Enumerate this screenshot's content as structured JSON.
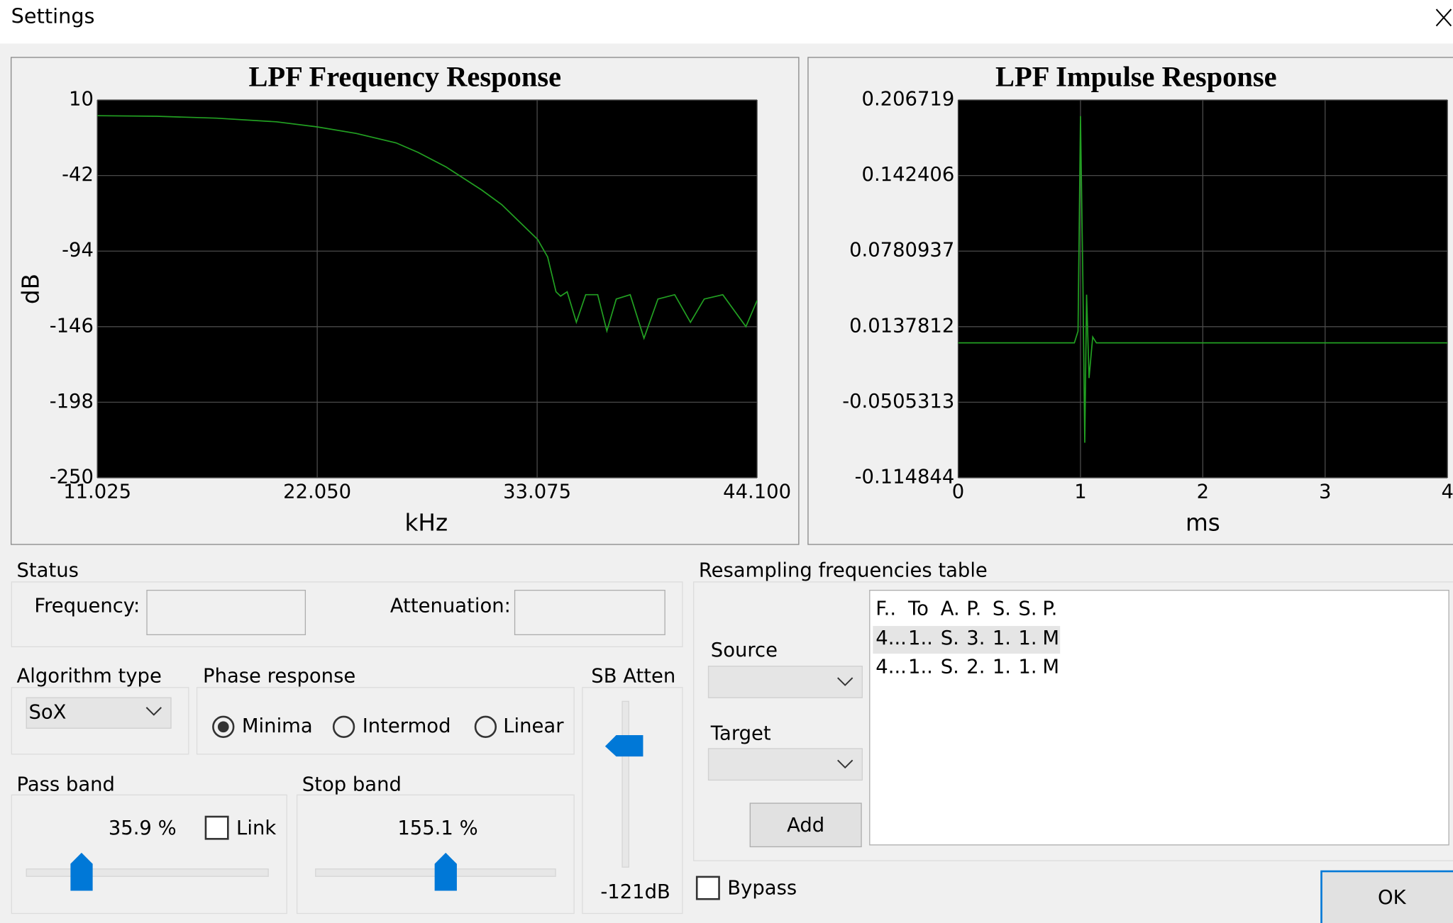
{
  "window": {
    "title": "Settings"
  },
  "chart_data": [
    {
      "type": "line",
      "title": "LPF Frequency Response",
      "x_label": "kHz",
      "y_label": "dB",
      "color": "#22a022",
      "grid": true,
      "xlim": [
        11.025,
        44.1
      ],
      "xticks": [
        11.025,
        {
          "value": 22.05,
          "label": "22.050"
        },
        33.075,
        {
          "value": 44.1,
          "label": "44.100"
        }
      ],
      "ylim": [
        -250,
        10
      ],
      "yticks": [
        10,
        -42,
        -94,
        -146,
        -198,
        -250
      ],
      "x": [
        11.025,
        14,
        17,
        20,
        22.05,
        24,
        26,
        27.1,
        28.5,
        30.3,
        31.3,
        32.2,
        33.1,
        33.6,
        34.02,
        34.25,
        34.58,
        35.04,
        35.51,
        36.11,
        36.57,
        37.04,
        37.74,
        38.43,
        39.13,
        39.97,
        40.76,
        41.45,
        42.38,
        43.54,
        44.1
      ],
      "values": [
        -0.8,
        -1.2,
        -2.5,
        -5,
        -8.5,
        -13,
        -19.5,
        -26,
        -36,
        -52,
        -62,
        -74,
        -86,
        -98,
        -122,
        -125,
        -122,
        -143,
        -124,
        -124,
        -149,
        -127,
        -124,
        -154,
        -127,
        -124,
        -143,
        -127,
        -124,
        -146,
        -128
      ]
    },
    {
      "type": "line",
      "title": "LPF Impulse Response",
      "x_label": "ms",
      "color": "#22a022",
      "grid": true,
      "xlim": [
        0,
        4
      ],
      "xticks": [
        0,
        1,
        2,
        3,
        4
      ],
      "ylim": [
        -0.114844,
        0.206719
      ],
      "yticks": [
        0.206719,
        0.142406,
        0.0780937,
        0.0137812,
        -0.0505313,
        -0.114844
      ],
      "x": [
        0,
        0.95,
        0.98,
        1.0,
        1.02,
        1.035,
        1.05,
        1.07,
        1.1,
        1.13,
        4
      ],
      "values": [
        0,
        0,
        0.01,
        0.193,
        0.05,
        -0.085,
        0.041,
        -0.03,
        0.005,
        0,
        0
      ]
    }
  ],
  "status": {
    "title": "Status",
    "frequency_label": "Frequency:",
    "attenuation_label": "Attenuation:"
  },
  "algorithm": {
    "title": "Algorithm type",
    "selected": "SoX"
  },
  "phase": {
    "title": "Phase response",
    "options": [
      "Minima",
      "Intermod",
      "Linear"
    ]
  },
  "sb_atten": {
    "title": "SB Atten",
    "value": "-121dB"
  },
  "pass_band": {
    "title": "Pass band",
    "value": "35.9 %",
    "link": "Link"
  },
  "stop_band": {
    "title": "Stop band",
    "value": "155.1 %"
  },
  "resampling": {
    "title": "Resampling frequencies table",
    "source_label": "Source",
    "target_label": "Target",
    "add": "Add",
    "table": {
      "header": [
        "F..",
        "To",
        "A.",
        "P.",
        "S.",
        "S.",
        "P."
      ],
      "rows": [
        [
          "4...",
          "1..",
          "S.",
          "3.",
          "1.",
          "1.",
          "M"
        ],
        [
          "4...",
          "1..",
          "S.",
          "2.",
          "1.",
          "1.",
          "M"
        ]
      ]
    }
  },
  "bypass": "Bypass",
  "ok": "OK"
}
